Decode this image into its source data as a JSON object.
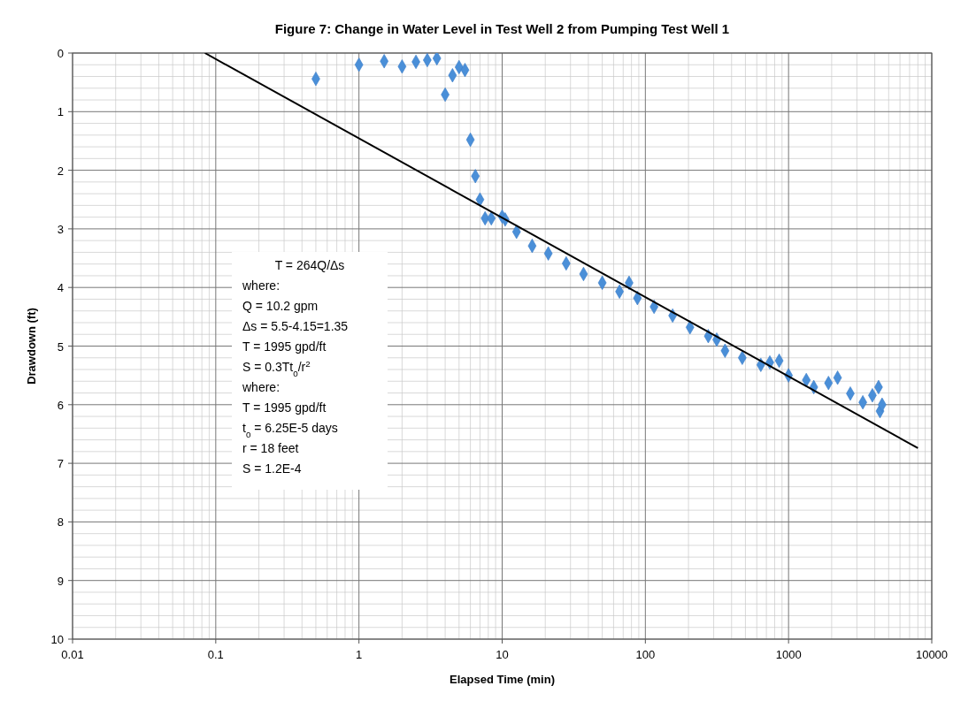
{
  "chart_data": {
    "type": "scatter",
    "title": "Figure 7: Change in Water Level in Test Well 2 from Pumping Test Well 1",
    "xlabel": "Elapsed Time (min)",
    "ylabel": "Drawdown (ft)",
    "log": "x",
    "grid": true,
    "marker": "diamond",
    "xlim": [
      0.01,
      10000
    ],
    "xticks": [
      0.01,
      0.1,
      1,
      10,
      100,
      1000,
      10000
    ],
    "ylim": [
      10,
      0
    ],
    "yticks": [
      0,
      1,
      2,
      3,
      4,
      5,
      6,
      7,
      8,
      9,
      10
    ],
    "annotations": [
      "T = 264Q/Δs",
      "where:",
      "Q = 10.2 gpm",
      "Δs = 5.5-4.15=1.35",
      "T = 1995 gpd/ft",
      "S = 0.3Tt$_{0}$/r$^{2}$",
      "where:",
      "T = 1995 gpd/ft",
      "t$_{0}$ = 6.25E-5 days",
      "r = 18 feet",
      "S = 1.2E-4"
    ],
    "series": [
      {
        "color": "#4a8fd8",
        "x": [
          0.5,
          1,
          1.5,
          2,
          2.5,
          3,
          3.5,
          4,
          4.5,
          5,
          5.5,
          6,
          6.5,
          7,
          7.6,
          8.4,
          10,
          10.5,
          12.6,
          16.2,
          21,
          28,
          37,
          50,
          66,
          77,
          88,
          115,
          155,
          205,
          275,
          315,
          360,
          475,
          640,
          740,
          860,
          1000,
          1330,
          1500,
          1900,
          2200,
          2700,
          3300,
          3850,
          4250,
          4350,
          4500
        ],
        "values": [
          0.44,
          0.2,
          0.14,
          0.23,
          0.15,
          0.12,
          0.09,
          0.71,
          0.38,
          0.24,
          0.29,
          1.48,
          2.1,
          2.5,
          2.82,
          2.82,
          2.79,
          2.84,
          3.05,
          3.29,
          3.42,
          3.59,
          3.77,
          3.92,
          4.07,
          3.92,
          4.18,
          4.33,
          4.48,
          4.68,
          4.83,
          4.89,
          5.08,
          5.2,
          5.32,
          5.28,
          5.25,
          5.5,
          5.58,
          5.7,
          5.63,
          5.54,
          5.81,
          5.96,
          5.84,
          5.7,
          6.11,
          6.0
        ]
      },
      {
        "type": "line",
        "marker": "none",
        "color": "#000000",
        "x": [
          0.084,
          8000
        ],
        "values": [
          0,
          6.74
        ]
      }
    ]
  }
}
